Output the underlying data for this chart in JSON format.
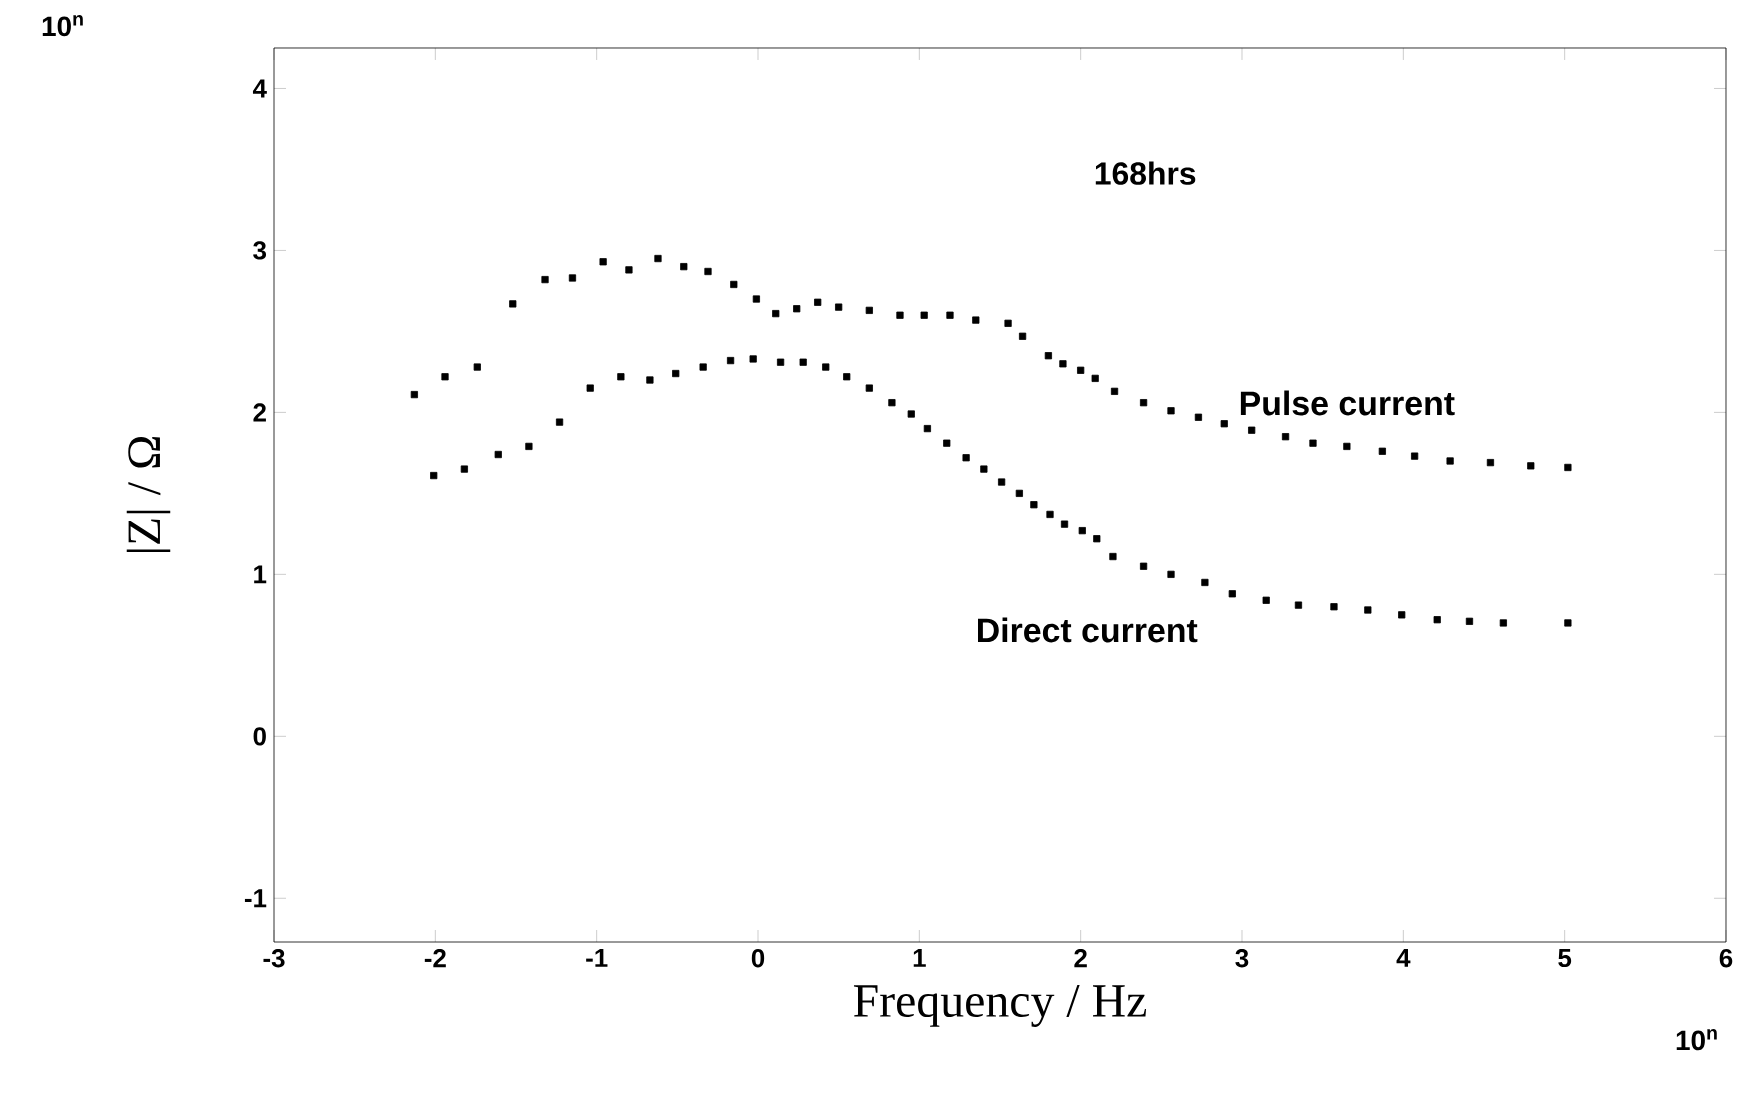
{
  "chart_data": {
    "type": "scatter",
    "xlabel": "Frequency / Hz",
    "ylabel": "|Z| / Ω",
    "annotations": [
      "168hrs",
      "10$^{n}$",
      "10$^{n}$"
    ],
    "xlim": [
      -3,
      6
    ],
    "xticks": [
      -3,
      -2,
      -1,
      0,
      1,
      2,
      3,
      4,
      5,
      6
    ],
    "ylim": [
      -1.27,
      4.25
    ],
    "yticks": [
      -1,
      0,
      1,
      2,
      3,
      4
    ],
    "marker": "square",
    "grid": false,
    "legend": false,
    "series": [
      {
        "name": "Pulse current",
        "color": "#000000",
        "x": [
          -2.13,
          -1.94,
          -1.74,
          -1.52,
          -1.32,
          -1.15,
          -0.96,
          -0.8,
          -0.62,
          -0.46,
          -0.31,
          -0.15,
          -0.01,
          0.11,
          0.24,
          0.37,
          0.5,
          0.69,
          0.88,
          1.03,
          1.19,
          1.35,
          1.55,
          1.64,
          1.8,
          1.89,
          2.0,
          2.09,
          2.21,
          2.39,
          2.56,
          2.73,
          2.89,
          3.06,
          3.27,
          3.44,
          3.65,
          3.87,
          4.07,
          4.29,
          4.54,
          4.79,
          5.02
        ],
        "values": [
          2.11,
          2.22,
          2.28,
          2.67,
          2.82,
          2.83,
          2.93,
          2.88,
          2.95,
          2.9,
          2.87,
          2.79,
          2.7,
          2.61,
          2.64,
          2.68,
          2.65,
          2.63,
          2.6,
          2.6,
          2.6,
          2.57,
          2.55,
          2.47,
          2.35,
          2.3,
          2.26,
          2.21,
          2.13,
          2.06,
          2.01,
          1.97,
          1.93,
          1.89,
          1.85,
          1.81,
          1.79,
          1.76,
          1.73,
          1.7,
          1.69,
          1.67,
          1.66
        ]
      },
      {
        "name": "Direct current",
        "color": "#000000",
        "x": [
          -2.01,
          -1.82,
          -1.61,
          -1.42,
          -1.23,
          -1.04,
          -0.85,
          -0.67,
          -0.51,
          -0.34,
          -0.17,
          -0.03,
          0.14,
          0.28,
          0.42,
          0.55,
          0.69,
          0.83,
          0.95,
          1.05,
          1.17,
          1.29,
          1.4,
          1.51,
          1.62,
          1.71,
          1.81,
          1.9,
          2.01,
          2.1,
          2.2,
          2.39,
          2.56,
          2.77,
          2.94,
          3.15,
          3.35,
          3.57,
          3.78,
          3.99,
          4.21,
          4.41,
          4.62,
          5.02
        ],
        "values": [
          1.61,
          1.65,
          1.74,
          1.79,
          1.94,
          2.15,
          2.22,
          2.2,
          2.24,
          2.28,
          2.32,
          2.33,
          2.31,
          2.31,
          2.28,
          2.22,
          2.15,
          2.06,
          1.99,
          1.9,
          1.81,
          1.72,
          1.65,
          1.57,
          1.5,
          1.43,
          1.37,
          1.31,
          1.27,
          1.22,
          1.11,
          1.05,
          1.0,
          0.95,
          0.88,
          0.84,
          0.81,
          0.8,
          0.78,
          0.75,
          0.72,
          0.71,
          0.7,
          0.7
        ]
      }
    ]
  }
}
